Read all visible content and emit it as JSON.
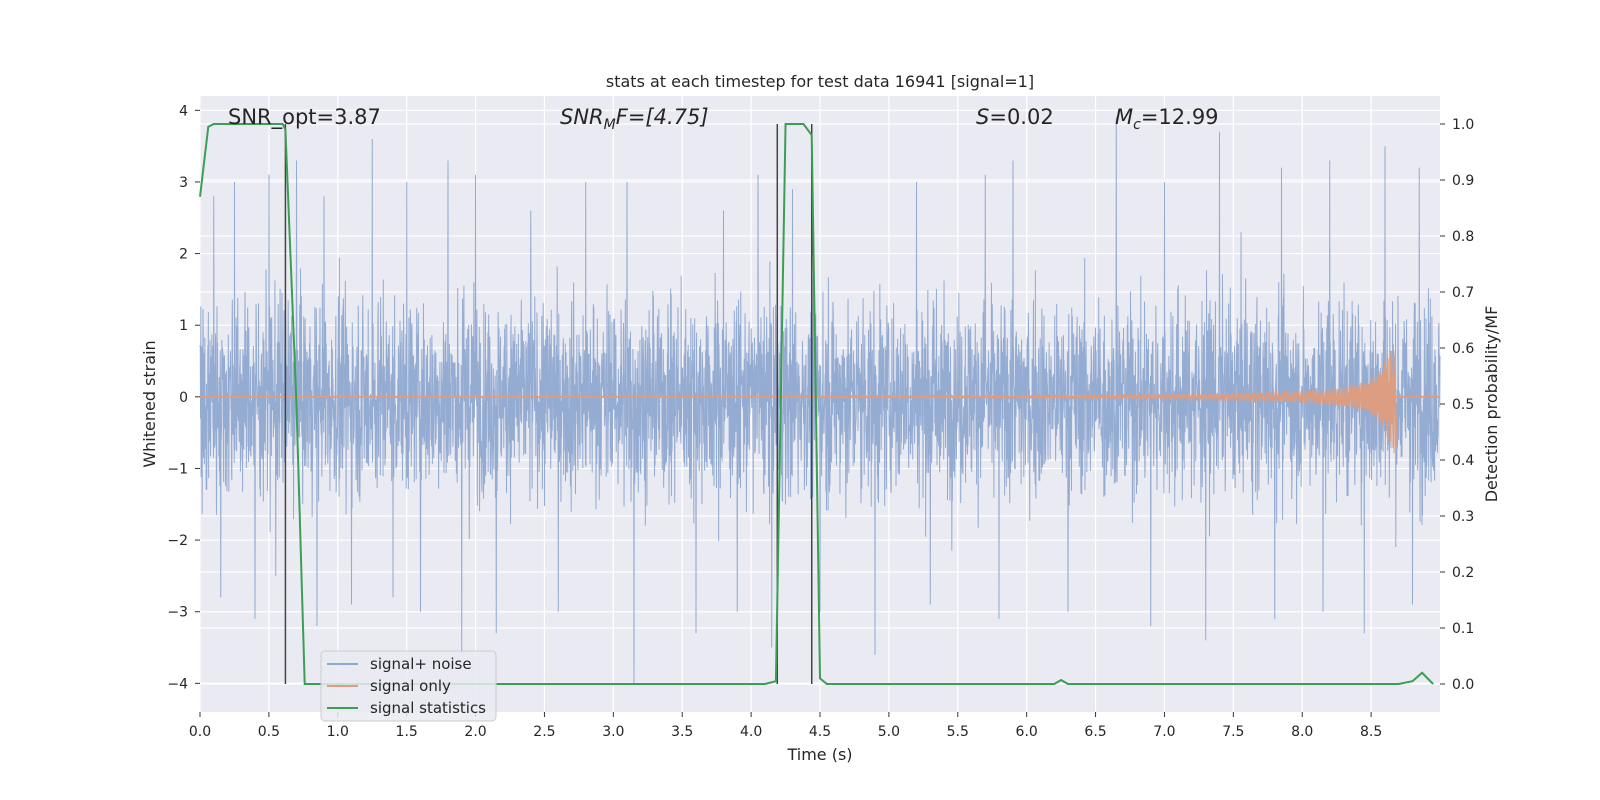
{
  "chart_data": {
    "type": "line",
    "title": "stats at each timestep for test data 16941 [signal=1]",
    "xlabel": "Time (s)",
    "ylabel": "Whitened strain",
    "y2label": "Detection probability/MF",
    "xlim": [
      0.0,
      9.0
    ],
    "ylim": [
      -4.4,
      4.2
    ],
    "y2lim": [
      -0.05,
      1.05
    ],
    "xticks": [
      "0.0",
      "0.5",
      "1.0",
      "1.5",
      "2.0",
      "2.5",
      "3.0",
      "3.5",
      "4.0",
      "4.5",
      "5.0",
      "5.5",
      "6.0",
      "6.5",
      "7.0",
      "7.5",
      "8.0",
      "8.5"
    ],
    "yticks": [
      "4",
      "3",
      "2",
      "1",
      "0",
      "−1",
      "−2",
      "−3",
      "−4"
    ],
    "y2ticks": [
      "1.0",
      "0.9",
      "0.8",
      "0.7",
      "0.6",
      "0.5",
      "0.4",
      "0.3",
      "0.2",
      "0.1",
      "0.0"
    ],
    "grid": true,
    "legend_position": "lower-left",
    "annotations": {
      "snr_opt": "SNR_opt=3.87",
      "snr_mf_main": "SNR",
      "snr_mf_sub": "M",
      "snr_mf_rest": "F=[4.75]",
      "s_var": "S",
      "s_val": "=0.02",
      "mc_var": "M",
      "mc_sub": "c",
      "mc_val": "=12.99"
    },
    "series": [
      {
        "name": "signal+ noise",
        "axis": "left",
        "color": "#8fa8d0",
        "note_envelope": "noise trace, roughly between -2.5 and 2.5 with peaks to about 3.9 and -4.0",
        "peaks": [
          [
            0.1,
            2.8
          ],
          [
            0.25,
            3.0
          ],
          [
            0.5,
            3.1
          ],
          [
            0.7,
            3.3
          ],
          [
            0.9,
            2.8
          ],
          [
            1.1,
            3.1
          ],
          [
            1.25,
            3.6
          ],
          [
            1.5,
            3.0
          ],
          [
            1.8,
            3.3
          ],
          [
            2.0,
            3.1
          ],
          [
            2.15,
            3.4
          ],
          [
            2.4,
            2.6
          ],
          [
            2.8,
            3.0
          ],
          [
            3.1,
            3.0
          ],
          [
            3.6,
            3.2
          ],
          [
            3.8,
            2.6
          ],
          [
            4.05,
            3.1
          ],
          [
            4.3,
            2.9
          ],
          [
            4.9,
            3.0
          ],
          [
            5.2,
            3.0
          ],
          [
            5.7,
            3.1
          ],
          [
            5.9,
            3.3
          ],
          [
            6.3,
            3.0
          ],
          [
            6.65,
            3.9
          ],
          [
            7.0,
            3.0
          ],
          [
            7.4,
            3.7
          ],
          [
            7.85,
            3.2
          ],
          [
            8.2,
            3.3
          ],
          [
            8.6,
            3.5
          ],
          [
            8.85,
            3.2
          ]
        ],
        "troughs": [
          [
            0.15,
            -2.8
          ],
          [
            0.4,
            -3.1
          ],
          [
            0.55,
            -2.5
          ],
          [
            0.85,
            -3.2
          ],
          [
            1.1,
            -2.9
          ],
          [
            1.4,
            -2.8
          ],
          [
            1.6,
            -3.0
          ],
          [
            1.9,
            -3.6
          ],
          [
            2.15,
            -3.3
          ],
          [
            2.6,
            -3.0
          ],
          [
            3.15,
            -4.0
          ],
          [
            3.6,
            -3.3
          ],
          [
            3.9,
            -3.0
          ],
          [
            4.15,
            -3.5
          ],
          [
            4.5,
            -3.0
          ],
          [
            4.9,
            -3.6
          ],
          [
            5.3,
            -2.9
          ],
          [
            5.8,
            -3.1
          ],
          [
            6.3,
            -3.0
          ],
          [
            6.9,
            -3.2
          ],
          [
            7.3,
            -3.4
          ],
          [
            7.8,
            -3.1
          ],
          [
            8.15,
            -3.0
          ],
          [
            8.45,
            -3.3
          ],
          [
            8.8,
            -2.9
          ]
        ]
      },
      {
        "name": "signal only",
        "axis": "left",
        "color": "#dd9d80",
        "chirp_start": 4.4,
        "chirp_end": 8.68,
        "chirp_peak_amplitude": 0.8
      },
      {
        "name": "signal statistics",
        "axis": "right",
        "color": "#3c9e53",
        "x": [
          0.0,
          0.06,
          0.1,
          0.15,
          0.2,
          0.3,
          0.4,
          0.5,
          0.55,
          0.6,
          0.62,
          0.7,
          0.76,
          0.8,
          1.0,
          2.0,
          3.0,
          4.0,
          4.1,
          4.18,
          4.25,
          4.3,
          4.38,
          4.44,
          4.47,
          4.5,
          4.55,
          5.0,
          6.0,
          6.2,
          6.25,
          6.3,
          6.5,
          7.0,
          8.0,
          8.7,
          8.8,
          8.87,
          8.95
        ],
        "y": [
          0.87,
          0.995,
          1.0,
          1.0,
          1.0,
          1.0,
          1.0,
          1.0,
          1.0,
          1.0,
          0.99,
          0.5,
          0.0,
          0.0,
          0.0,
          0.0,
          0.0,
          0.0,
          0.0,
          0.005,
          1.0,
          1.0,
          1.0,
          0.98,
          0.5,
          0.01,
          0.0,
          0.0,
          0.0,
          0.0,
          0.007,
          0.0,
          0.0,
          0.0,
          0.0,
          0.0,
          0.005,
          0.02,
          0.0
        ]
      }
    ],
    "vertical_lines": [
      0.62,
      4.19,
      4.44
    ],
    "legend": {
      "entries": [
        {
          "label": "signal+ noise",
          "color": "#8fa8d0"
        },
        {
          "label": "signal only",
          "color": "#dd9d80"
        },
        {
          "label": "signal statistics",
          "color": "#3c9e53"
        }
      ]
    }
  }
}
